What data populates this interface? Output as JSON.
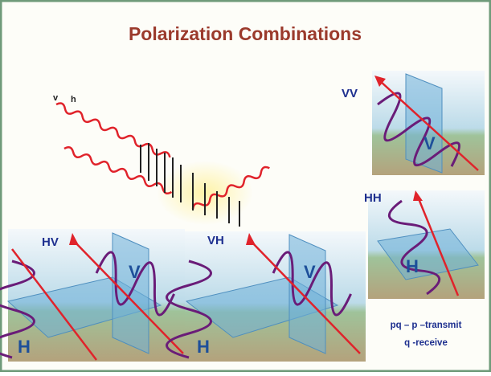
{
  "title": "Polarization Combinations",
  "incident": [
    "v",
    "h"
  ],
  "panels": [
    {
      "label": "VV",
      "planes": [
        "V"
      ]
    },
    {
      "label": "HH",
      "planes": [
        "H"
      ]
    },
    {
      "label": "HV",
      "planes": [
        "V",
        "H"
      ]
    },
    {
      "label": "VH",
      "planes": [
        "V",
        "H"
      ]
    }
  ],
  "legend": [
    "pq – p –transmit",
    "q -receive"
  ]
}
